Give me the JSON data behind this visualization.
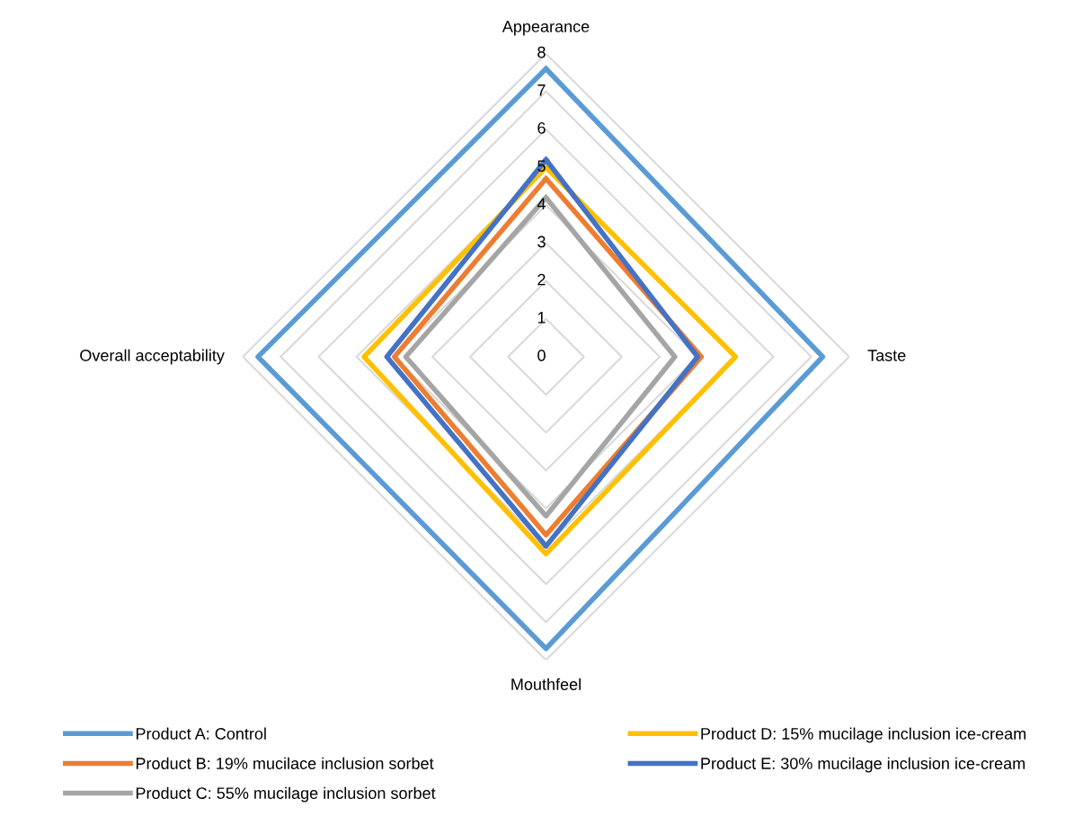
{
  "chart_data": {
    "type": "radar",
    "categories": [
      "Appearance",
      "Taste",
      "Mouthfeel",
      "Overall acceptability"
    ],
    "ylim": [
      0,
      8
    ],
    "yticks": [
      0,
      1,
      2,
      3,
      4,
      5,
      6,
      7,
      8
    ],
    "grid": true,
    "legend": "bottom",
    "marker": "none",
    "series": [
      {
        "name": "Product A: Control",
        "color": "#5b9bd5",
        "values": [
          7.6,
          7.3,
          7.7,
          7.6
        ]
      },
      {
        "name": "Product B: 19% mucilace inclusion sorbet",
        "color": "#ed7d31",
        "values": [
          4.7,
          4.1,
          4.7,
          4.0
        ]
      },
      {
        "name": "Product C: 55% mucilage inclusion sorbet",
        "color": "#a5a5a5",
        "values": [
          4.2,
          3.4,
          4.2,
          3.7
        ]
      },
      {
        "name": "Product D: 15% mucilage inclusion ice-cream",
        "color": "#ffc000",
        "values": [
          5.0,
          5.0,
          5.2,
          4.8
        ]
      },
      {
        "name": "Product E: 30% mucilage inclusion ice-cream",
        "color": "#4472c4",
        "values": [
          5.2,
          4.0,
          5.0,
          4.2
        ]
      }
    ]
  }
}
